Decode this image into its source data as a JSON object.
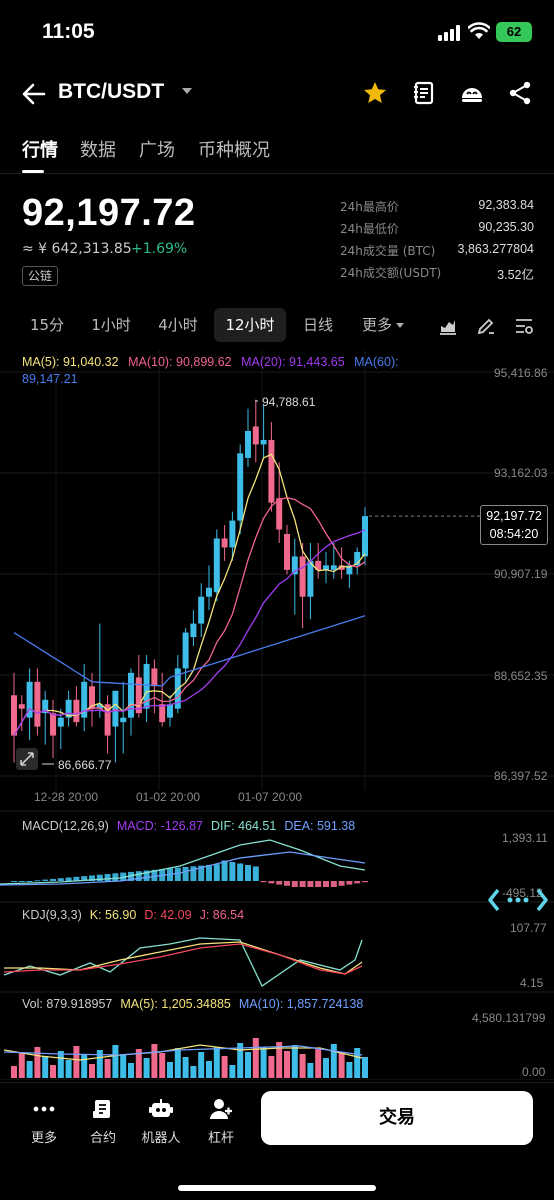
{
  "status_bar": {
    "time": "11:05",
    "battery": "62"
  },
  "header": {
    "pair": "BTC/USDT"
  },
  "tabs": [
    "行情",
    "数据",
    "广场",
    "币种概况"
  ],
  "price": {
    "last": "92,197.72",
    "cny": "≈ ¥ 642,313.85",
    "change": "+1.69%",
    "badge": "公链"
  },
  "stats": [
    {
      "k": "24h最高价",
      "v": "92,383.84"
    },
    {
      "k": "24h最低价",
      "v": "90,235.30"
    },
    {
      "k": "24h成交量 (BTC)",
      "v": "3,863.277804"
    },
    {
      "k": "24h成交额(USDT)",
      "v": "3.52亿"
    }
  ],
  "intervals": [
    "15分",
    "1小时",
    "4小时",
    "12小时",
    "日线",
    "更多"
  ],
  "active_interval": "12小时",
  "ma_legend": {
    "ma5": "MA(5): 91,040.32",
    "ma10": "MA(10): 90,899.62",
    "ma20": "MA(20): 91,443.65",
    "ma60": "MA(60): 89,147.21"
  },
  "colors": {
    "up": "#2ebd85",
    "down": "#f6465d",
    "up_candle": "#3dbde8",
    "down_candle": "#f06a8e",
    "ma5": "#f5e37a",
    "ma10": "#f06292",
    "ma20": "#a23cf0",
    "ma60": "#4b7bf0"
  },
  "price_axis": [
    "95,416.86",
    "93,162.03",
    "90,907.19",
    "88,652.35",
    "86,397.52"
  ],
  "time_axis": [
    "12-28 20:00",
    "01-02 20:00",
    "01-07 20:00"
  ],
  "current_price_tag": {
    "price": "92,197.72",
    "countdown": "08:54:20"
  },
  "high_label": "94,788.61",
  "low_label": "86,666.77",
  "macd": {
    "title": "MACD(12,26,9)",
    "macd": "MACD: -126.87",
    "dif": "DIF: 464.51",
    "dea": "DEA: 591.38",
    "axis_top": "1,393.11",
    "axis_bottom": "-495.12"
  },
  "kdj": {
    "title": "KDJ(9,3,3)",
    "k": "K: 56.90",
    "d": "D: 42.09",
    "j": "J: 86.54",
    "axis_top": "107.77",
    "axis_bottom": "4.15"
  },
  "vol": {
    "title": "Vol: 879.918957",
    "ma5": "MA(5): 1,205.34885",
    "ma10": "MA(10): 1,857.724138",
    "axis_top": "4,580.131799",
    "axis_bottom": "0.00"
  },
  "bottom_bar": {
    "items": [
      {
        "label": "更多",
        "icon": "more-icon"
      },
      {
        "label": "合约",
        "icon": "contract-icon"
      },
      {
        "label": "机器人",
        "icon": "robot-icon"
      },
      {
        "label": "杠杆",
        "icon": "leverage-icon"
      }
    ],
    "trade": "交易"
  },
  "chart_data": {
    "type": "candlestick",
    "candles": [
      [
        88200,
        88700,
        86700,
        87300
      ],
      [
        88000,
        88200,
        87400,
        87900
      ],
      [
        87700,
        88800,
        87200,
        88500
      ],
      [
        88500,
        88800,
        87300,
        87500
      ],
      [
        87800,
        88300,
        87100,
        88100
      ],
      [
        87800,
        88100,
        86800,
        87300
      ],
      [
        87500,
        87900,
        87000,
        87700
      ],
      [
        87700,
        88300,
        87500,
        88100
      ],
      [
        88100,
        88400,
        87500,
        87600
      ],
      [
        87700,
        88900,
        87400,
        88500
      ],
      [
        88400,
        88700,
        87500,
        87900
      ],
      [
        87900,
        89800,
        87700,
        88000
      ],
      [
        88000,
        88200,
        86900,
        87300
      ],
      [
        87500,
        88300,
        86700,
        88300
      ],
      [
        87600,
        88500,
        86900,
        87700
      ],
      [
        87700,
        88800,
        87300,
        88700
      ],
      [
        88600,
        89100,
        87700,
        87800
      ],
      [
        87900,
        89100,
        87600,
        88900
      ],
      [
        88800,
        89000,
        87800,
        88400
      ],
      [
        88000,
        88700,
        87500,
        87600
      ],
      [
        87700,
        88200,
        87500,
        88000
      ],
      [
        87900,
        89100,
        87800,
        88800
      ],
      [
        88800,
        89700,
        88500,
        89600
      ],
      [
        89500,
        90100,
        89300,
        89800
      ],
      [
        89800,
        90700,
        89500,
        90400
      ],
      [
        90400,
        91100,
        90100,
        90600
      ],
      [
        90500,
        91900,
        90300,
        91700
      ],
      [
        91700,
        92000,
        91200,
        91500
      ],
      [
        91500,
        92300,
        91200,
        92100
      ],
      [
        92100,
        93800,
        91800,
        93600
      ],
      [
        93500,
        94600,
        93300,
        94100
      ],
      [
        94200,
        94800,
        93400,
        93800
      ],
      [
        93800,
        94700,
        93500,
        93900
      ],
      [
        93900,
        94300,
        92300,
        92500
      ],
      [
        92600,
        93400,
        91600,
        91900
      ],
      [
        91800,
        92000,
        90900,
        91000
      ],
      [
        90900,
        91700,
        90000,
        91300
      ],
      [
        91300,
        91600,
        89700,
        90400
      ],
      [
        90400,
        91600,
        89900,
        91200
      ],
      [
        91200,
        91600,
        90800,
        91000
      ],
      [
        91000,
        91400,
        90700,
        91100
      ],
      [
        91000,
        91600,
        90800,
        91100
      ],
      [
        91100,
        91500,
        90800,
        91000
      ],
      [
        90900,
        91200,
        90600,
        91100
      ],
      [
        91100,
        91500,
        90900,
        91400
      ],
      [
        91300,
        92400,
        91100,
        92200
      ]
    ],
    "ylim": [
      86397.52,
      95416.86
    ]
  }
}
